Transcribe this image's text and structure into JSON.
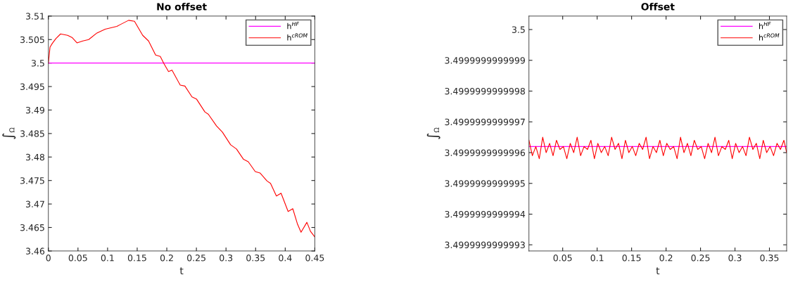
{
  "chart_data": [
    {
      "type": "line",
      "title": "No offset",
      "xlabel": "t",
      "ylabel": "∫$_{Ω}$",
      "xlim": [
        0,
        0.45
      ],
      "ylim": [
        3.46,
        3.51
      ],
      "xticks": [
        0,
        0.05,
        0.1,
        0.15,
        0.2,
        0.25,
        0.3,
        0.35,
        0.4,
        0.45
      ],
      "yticks": [
        3.46,
        3.465,
        3.47,
        3.475,
        3.48,
        3.485,
        3.49,
        3.495,
        3.5,
        3.505,
        3.51
      ],
      "grid": false,
      "legend": "top right",
      "line_style": "solid",
      "series": [
        {
          "name": "h$^{HF}$",
          "color": "#ff00ff",
          "x": [
            0,
            0.45
          ],
          "values": [
            3.5,
            3.5
          ]
        },
        {
          "name": "h$^{cROM}$",
          "color": "#ff0000",
          "x": [
            0,
            0.0028,
            0.0067,
            0.0127,
            0.0206,
            0.0325,
            0.0404,
            0.0483,
            0.0582,
            0.0681,
            0.082,
            0.0959,
            0.1157,
            0.1216,
            0.1355,
            0.1454,
            0.1593,
            0.1692,
            0.1811,
            0.189,
            0.195,
            0.2029,
            0.2088,
            0.2227,
            0.2306,
            0.2425,
            0.2504,
            0.2643,
            0.2702,
            0.284,
            0.2939,
            0.3078,
            0.3177,
            0.3296,
            0.3376,
            0.3494,
            0.3574,
            0.3693,
            0.3752,
            0.3851,
            0.393,
            0.4049,
            0.4128,
            0.4208,
            0.4267,
            0.4366,
            0.4426,
            0.45
          ],
          "values": [
            3.5,
            3.5034,
            3.5042,
            3.5052,
            3.5062,
            3.5059,
            3.5054,
            3.5043,
            3.5047,
            3.505,
            3.5064,
            3.5072,
            3.5078,
            3.5082,
            3.5091,
            3.5089,
            3.5059,
            3.5047,
            3.5017,
            3.5014,
            3.4999,
            3.4982,
            3.4985,
            3.4953,
            3.4951,
            3.4928,
            3.4923,
            3.4896,
            3.4891,
            3.4866,
            3.4853,
            3.4826,
            3.4817,
            3.4795,
            3.479,
            3.4769,
            3.4766,
            3.4749,
            3.4744,
            3.4717,
            3.4723,
            3.4684,
            3.469,
            3.4657,
            3.464,
            3.4661,
            3.4642,
            3.463
          ]
        }
      ]
    },
    {
      "type": "line",
      "title": "Offset",
      "xlabel": "t",
      "ylabel": "∫$_{Ω}$",
      "xlim": [
        0.001,
        0.375
      ],
      "ylim": [
        3.49999999999928,
        3.500000000000044
      ],
      "xticks": [
        0.05,
        0.1,
        0.15,
        0.2,
        0.25,
        0.3,
        0.35
      ],
      "yticks": [
        3.4999999999993,
        3.4999999999994,
        3.4999999999995,
        3.4999999999996,
        3.4999999999997,
        3.4999999999998,
        3.4999999999999,
        3.5
      ],
      "grid": false,
      "legend": "top right",
      "line_style": "solid",
      "series": [
        {
          "name": "h$^{HF}$",
          "color": "#ff00ff",
          "x": [
            0.001,
            0.375
          ],
          "values": [
            3.49999999999962,
            3.49999999999962
          ]
        },
        {
          "name": "h$^{cROM}$",
          "color": "#ff0000",
          "x": [
            0.001,
            0.006,
            0.011,
            0.016,
            0.021,
            0.026,
            0.031,
            0.036,
            0.041,
            0.046,
            0.051,
            0.056,
            0.061,
            0.066,
            0.071,
            0.076,
            0.081,
            0.086,
            0.091,
            0.096,
            0.101,
            0.106,
            0.111,
            0.116,
            0.121,
            0.126,
            0.131,
            0.136,
            0.141,
            0.146,
            0.151,
            0.156,
            0.161,
            0.166,
            0.171,
            0.176,
            0.181,
            0.186,
            0.191,
            0.196,
            0.201,
            0.206,
            0.211,
            0.216,
            0.221,
            0.226,
            0.231,
            0.236,
            0.241,
            0.246,
            0.251,
            0.256,
            0.261,
            0.266,
            0.271,
            0.276,
            0.281,
            0.286,
            0.291,
            0.296,
            0.301,
            0.306,
            0.311,
            0.316,
            0.321,
            0.326,
            0.331,
            0.336,
            0.341,
            0.346,
            0.351,
            0.356,
            0.361,
            0.366,
            0.371,
            0.375
          ],
          "values": [
            3.49999999999964,
            3.49999999999959,
            3.49999999999962,
            3.49999999999958,
            3.49999999999965,
            3.4999999999996,
            3.49999999999963,
            3.49999999999959,
            3.49999999999964,
            3.49999999999961,
            3.49999999999962,
            3.49999999999958,
            3.49999999999963,
            3.4999999999996,
            3.49999999999965,
            3.49999999999959,
            3.49999999999962,
            3.49999999999961,
            3.49999999999964,
            3.49999999999958,
            3.49999999999963,
            3.4999999999996,
            3.49999999999962,
            3.49999999999959,
            3.49999999999965,
            3.49999999999961,
            3.49999999999963,
            3.49999999999958,
            3.49999999999964,
            3.4999999999996,
            3.49999999999962,
            3.49999999999959,
            3.49999999999963,
            3.49999999999961,
            3.49999999999965,
            3.49999999999958,
            3.49999999999962,
            3.4999999999996,
            3.49999999999964,
            3.49999999999959,
            3.49999999999963,
            3.49999999999961,
            3.49999999999962,
            3.49999999999958,
            3.49999999999965,
            3.4999999999996,
            3.49999999999963,
            3.49999999999959,
            3.49999999999964,
            3.49999999999961,
            3.49999999999962,
            3.49999999999958,
            3.49999999999963,
            3.4999999999996,
            3.49999999999965,
            3.49999999999959,
            3.49999999999962,
            3.49999999999961,
            3.49999999999964,
            3.49999999999958,
            3.49999999999963,
            3.4999999999996,
            3.49999999999962,
            3.49999999999959,
            3.49999999999965,
            3.49999999999961,
            3.49999999999963,
            3.49999999999958,
            3.49999999999964,
            3.4999999999996,
            3.49999999999962,
            3.49999999999959,
            3.49999999999963,
            3.49999999999961,
            3.49999999999964,
            3.4999999999996
          ]
        }
      ]
    }
  ]
}
